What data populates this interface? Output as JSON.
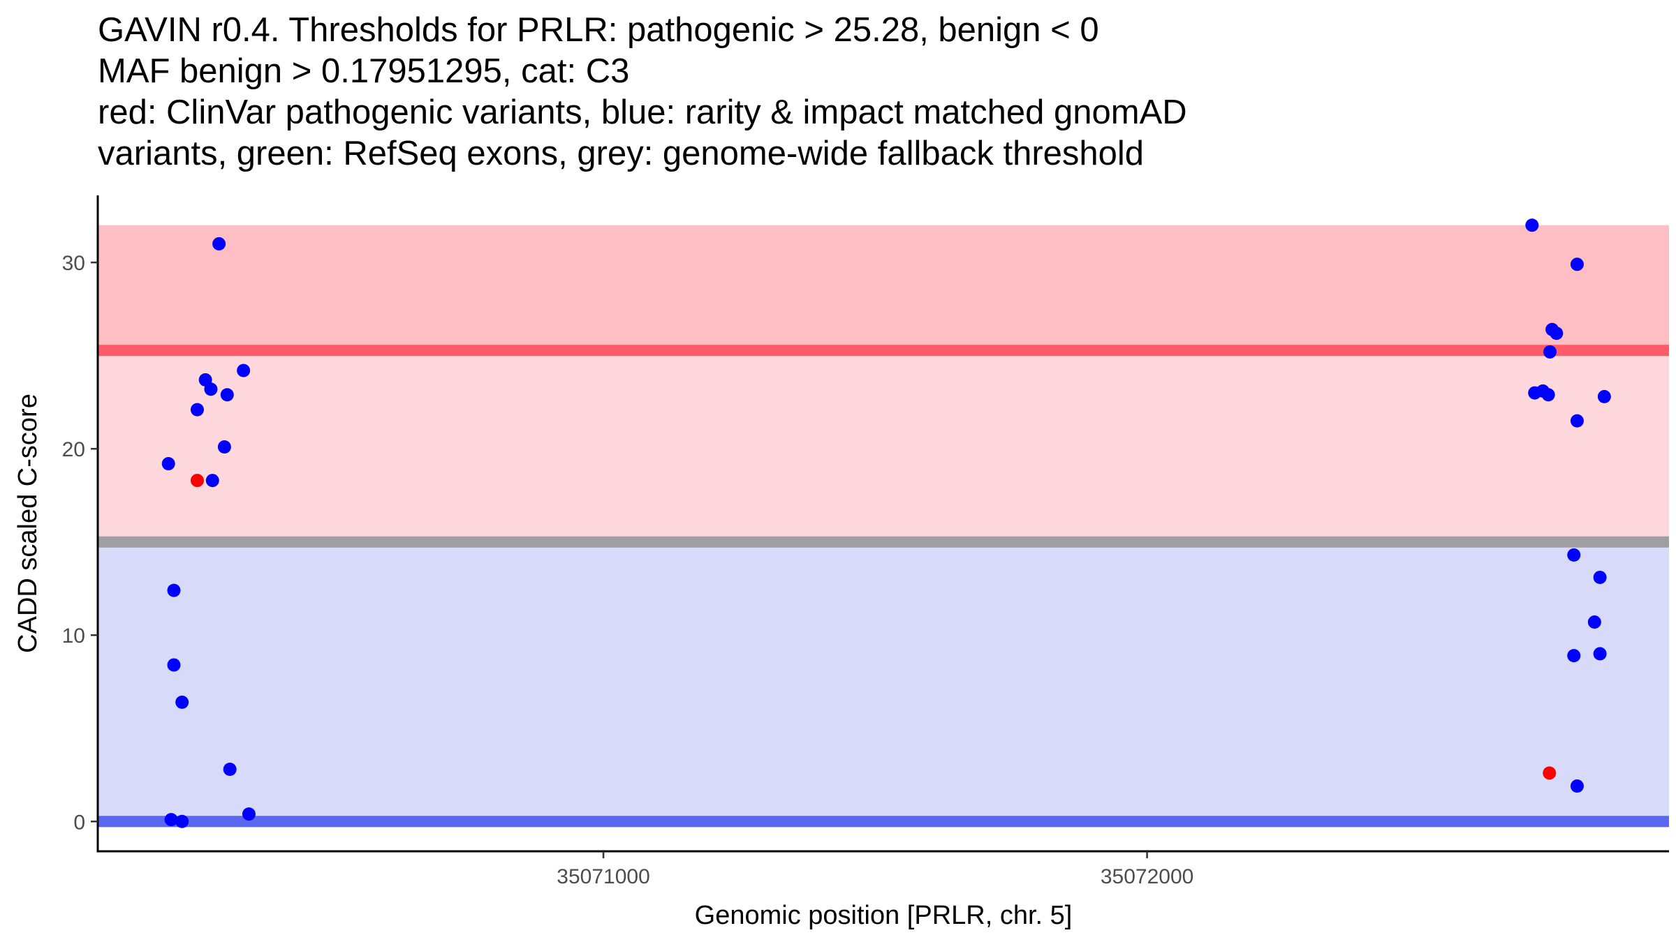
{
  "title_lines": [
    "GAVIN r0.4. Thresholds for PRLR: pathogenic > 25.28, benign < 0",
    "MAF benign > 0.17951295, cat: C3",
    "red: ClinVar pathogenic variants, blue: rarity & impact matched gnomAD",
    "variants, green: RefSeq exons, grey: genome-wide fallback threshold"
  ],
  "chart_data": {
    "type": "scatter",
    "xlabel": "Genomic position [PRLR, chr. 5]",
    "ylabel": "CADD scaled C-score",
    "xlim": [
      35070070,
      35072960
    ],
    "ylim": [
      -1.6,
      33.6
    ],
    "x_ticks": [
      35071000,
      35072000
    ],
    "x_tick_labels": [
      "35071000",
      "35072000"
    ],
    "y_ticks": [
      0,
      10,
      20,
      30
    ],
    "y_tick_labels": [
      "0",
      "10",
      "20",
      "30"
    ],
    "grid": false,
    "regions": [
      {
        "name": "pathogenic",
        "from": 25.28,
        "to": 32.0,
        "color": "#ffbec4"
      },
      {
        "name": "between",
        "from": 15.0,
        "to": 25.28,
        "color": "#ffd8dd"
      },
      {
        "name": "benign",
        "from": 0,
        "to": 15.0,
        "color": "#d8daf9"
      }
    ],
    "threshold_lines": [
      {
        "name": "pathogenic-threshold",
        "y": 25.28,
        "color": "#ff5b68"
      },
      {
        "name": "fallback-threshold",
        "y": 15.0,
        "color": "#9e9ea4"
      },
      {
        "name": "benign-threshold",
        "y": 0,
        "color": "#5a67f0"
      }
    ],
    "series": [
      {
        "color": "#0000ff",
        "points": [
          {
            "x": 35070200,
            "y": 19.2
          },
          {
            "x": 35070210,
            "y": 12.4
          },
          {
            "x": 35070210,
            "y": 8.4
          },
          {
            "x": 35070225,
            "y": 6.4
          },
          {
            "x": 35070205,
            "y": 0.1
          },
          {
            "x": 35070225,
            "y": 0.0
          },
          {
            "x": 35070253,
            "y": 22.1
          },
          {
            "x": 35070268,
            "y": 23.7
          },
          {
            "x": 35070278,
            "y": 23.2
          },
          {
            "x": 35070281,
            "y": 18.3
          },
          {
            "x": 35070293,
            "y": 31.0
          },
          {
            "x": 35070303,
            "y": 20.1
          },
          {
            "x": 35070308,
            "y": 22.9
          },
          {
            "x": 35070313,
            "y": 2.8
          },
          {
            "x": 35070338,
            "y": 24.2
          },
          {
            "x": 35070348,
            "y": 0.4
          },
          {
            "x": 35072708,
            "y": 32.0
          },
          {
            "x": 35072713,
            "y": 23.0
          },
          {
            "x": 35072728,
            "y": 23.1
          },
          {
            "x": 35072738,
            "y": 22.9
          },
          {
            "x": 35072741,
            "y": 25.2
          },
          {
            "x": 35072745,
            "y": 26.4
          },
          {
            "x": 35072753,
            "y": 26.2
          },
          {
            "x": 35072785,
            "y": 14.3
          },
          {
            "x": 35072785,
            "y": 8.9
          },
          {
            "x": 35072791,
            "y": 29.9
          },
          {
            "x": 35072791,
            "y": 21.5
          },
          {
            "x": 35072791,
            "y": 1.9
          },
          {
            "x": 35072823,
            "y": 10.7
          },
          {
            "x": 35072833,
            "y": 13.1
          },
          {
            "x": 35072833,
            "y": 9.0
          },
          {
            "x": 35072841,
            "y": 22.8
          }
        ]
      },
      {
        "color": "#ff0000",
        "points": [
          {
            "x": 35070253,
            "y": 18.3
          },
          {
            "x": 35072740,
            "y": 2.6
          }
        ]
      }
    ]
  }
}
